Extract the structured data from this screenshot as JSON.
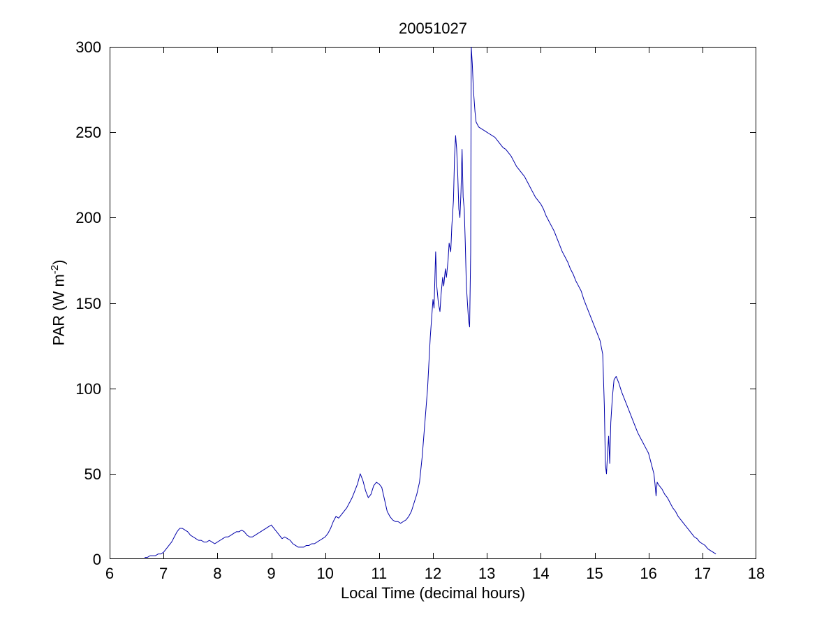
{
  "figure": {
    "ylabel_pre": "PAR (W m",
    "ylabel_sup": "-2",
    "ylabel_post": ")"
  },
  "chart_data": {
    "type": "line",
    "title": "20051027",
    "xlabel": "Local Time (decimal hours)",
    "ylabel": "PAR (W m^-2)",
    "xlim": [
      6,
      18
    ],
    "ylim": [
      0,
      300
    ],
    "xticks": [
      6,
      7,
      8,
      9,
      10,
      11,
      12,
      13,
      14,
      15,
      16,
      17,
      18
    ],
    "yticks": [
      0,
      50,
      100,
      150,
      200,
      250,
      300
    ],
    "grid": false,
    "legend": "none",
    "line_color": "#0000AA",
    "axis_color": "#000000",
    "background_color": "#ffffff",
    "series": [
      {
        "name": "PAR",
        "x": [
          6.65,
          6.7,
          6.75,
          6.8,
          6.85,
          6.9,
          6.95,
          7.0,
          7.05,
          7.1,
          7.15,
          7.2,
          7.25,
          7.3,
          7.35,
          7.4,
          7.45,
          7.5,
          7.55,
          7.6,
          7.65,
          7.7,
          7.75,
          7.8,
          7.85,
          7.9,
          7.95,
          8.0,
          8.05,
          8.1,
          8.15,
          8.2,
          8.25,
          8.3,
          8.35,
          8.4,
          8.45,
          8.5,
          8.55,
          8.6,
          8.65,
          8.7,
          8.75,
          8.8,
          8.85,
          8.9,
          8.95,
          9.0,
          9.05,
          9.1,
          9.15,
          9.2,
          9.25,
          9.3,
          9.35,
          9.4,
          9.45,
          9.5,
          9.55,
          9.6,
          9.65,
          9.7,
          9.75,
          9.8,
          9.85,
          9.9,
          9.95,
          10.0,
          10.05,
          10.1,
          10.15,
          10.2,
          10.25,
          10.3,
          10.35,
          10.4,
          10.45,
          10.5,
          10.55,
          10.6,
          10.65,
          10.7,
          10.75,
          10.8,
          10.85,
          10.9,
          10.95,
          11.0,
          11.05,
          11.1,
          11.15,
          11.2,
          11.25,
          11.3,
          11.35,
          11.4,
          11.45,
          11.5,
          11.55,
          11.6,
          11.65,
          11.7,
          11.75,
          11.8,
          11.85,
          11.9,
          11.95,
          12.0,
          12.02,
          12.05,
          12.07,
          12.1,
          12.13,
          12.15,
          12.18,
          12.2,
          12.23,
          12.25,
          12.28,
          12.3,
          12.33,
          12.35,
          12.38,
          12.4,
          12.42,
          12.44,
          12.46,
          12.48,
          12.5,
          12.52,
          12.54,
          12.56,
          12.58,
          12.6,
          12.62,
          12.64,
          12.66,
          12.68,
          12.7,
          12.71,
          12.73,
          12.75,
          12.78,
          12.8,
          12.85,
          12.9,
          12.95,
          13.0,
          13.05,
          13.1,
          13.15,
          13.2,
          13.25,
          13.3,
          13.35,
          13.4,
          13.45,
          13.5,
          13.55,
          13.6,
          13.65,
          13.7,
          13.75,
          13.8,
          13.85,
          13.9,
          13.95,
          14.0,
          14.05,
          14.1,
          14.15,
          14.2,
          14.25,
          14.3,
          14.35,
          14.4,
          14.45,
          14.5,
          14.55,
          14.6,
          14.65,
          14.7,
          14.75,
          14.8,
          14.85,
          14.9,
          14.95,
          15.0,
          15.05,
          15.1,
          15.15,
          15.18,
          15.2,
          15.22,
          15.24,
          15.26,
          15.28,
          15.3,
          15.33,
          15.36,
          15.4,
          15.45,
          15.5,
          15.55,
          15.6,
          15.65,
          15.7,
          15.75,
          15.8,
          15.85,
          15.9,
          15.95,
          16.0,
          16.05,
          16.1,
          16.12,
          16.14,
          16.16,
          16.18,
          16.2,
          16.25,
          16.3,
          16.35,
          16.4,
          16.45,
          16.5,
          16.55,
          16.6,
          16.65,
          16.7,
          16.75,
          16.8,
          16.85,
          16.9,
          16.95,
          17.0,
          17.05,
          17.1,
          17.15,
          17.2,
          17.25
        ],
        "y": [
          1,
          1,
          2,
          2,
          2,
          3,
          3,
          4,
          6,
          8,
          10,
          13,
          16,
          18,
          18,
          17,
          16,
          14,
          13,
          12,
          11,
          11,
          10,
          10,
          11,
          10,
          9,
          10,
          11,
          12,
          13,
          13,
          14,
          15,
          16,
          16,
          17,
          16,
          14,
          13,
          13,
          14,
          15,
          16,
          17,
          18,
          19,
          20,
          18,
          16,
          14,
          12,
          13,
          12,
          11,
          9,
          8,
          7,
          7,
          7,
          8,
          8,
          9,
          9,
          10,
          11,
          12,
          13,
          15,
          18,
          22,
          25,
          24,
          26,
          28,
          30,
          33,
          36,
          40,
          44,
          50,
          46,
          40,
          36,
          38,
          43,
          45,
          44,
          42,
          35,
          28,
          25,
          23,
          22,
          22,
          21,
          22,
          23,
          25,
          28,
          33,
          38,
          45,
          60,
          80,
          100,
          130,
          152,
          147,
          180,
          160,
          150,
          145,
          155,
          165,
          160,
          170,
          165,
          175,
          185,
          180,
          195,
          210,
          235,
          248,
          240,
          225,
          205,
          200,
          215,
          240,
          212,
          205,
          185,
          160,
          150,
          140,
          136,
          180,
          300,
          290,
          275,
          262,
          256,
          253,
          252,
          251,
          250,
          249,
          248,
          247,
          245,
          243,
          241,
          240,
          238,
          236,
          233,
          230,
          228,
          226,
          224,
          221,
          218,
          215,
          212,
          210,
          208,
          205,
          201,
          198,
          195,
          192,
          188,
          184,
          180,
          177,
          174,
          170,
          167,
          163,
          160,
          157,
          152,
          148,
          144,
          140,
          136,
          132,
          128,
          120,
          90,
          55,
          50,
          62,
          72,
          56,
          80,
          95,
          105,
          107,
          103,
          98,
          94,
          90,
          86,
          82,
          78,
          74,
          71,
          68,
          65,
          62,
          56,
          50,
          44,
          37,
          45,
          44,
          43,
          41,
          38,
          36,
          33,
          30,
          28,
          25,
          23,
          21,
          19,
          17,
          15,
          13,
          12,
          10,
          9,
          8,
          6,
          5,
          4,
          3
        ]
      }
    ]
  }
}
